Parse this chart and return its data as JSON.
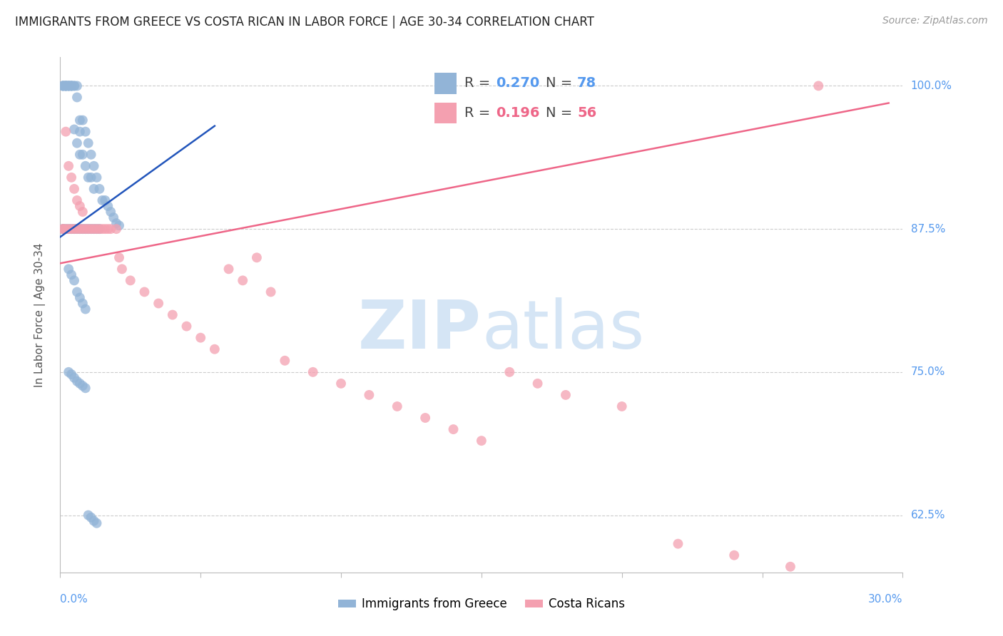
{
  "title": "IMMIGRANTS FROM GREECE VS COSTA RICAN IN LABOR FORCE | AGE 30-34 CORRELATION CHART",
  "source": "Source: ZipAtlas.com",
  "ylabel_label": "In Labor Force | Age 30-34",
  "legend_blue_r_val": "0.270",
  "legend_blue_n_val": "78",
  "legend_pink_r_val": "0.196",
  "legend_pink_n_val": "56",
  "blue_color": "#92B4D7",
  "pink_color": "#F4A0B0",
  "trend_blue_color": "#2255BB",
  "trend_pink_color": "#EE6688",
  "axis_label_color": "#5599EE",
  "watermark_color": "#D5E5F5",
  "background_color": "#FFFFFF",
  "xlim": [
    0.0,
    0.3
  ],
  "ylim": [
    0.575,
    1.025
  ],
  "yticks": [
    0.625,
    0.75,
    0.875,
    1.0
  ],
  "ytick_labels": [
    "62.5%",
    "75.0%",
    "87.5%",
    "100.0%"
  ],
  "blue_trend": [
    0.0,
    0.055,
    0.868,
    0.965
  ],
  "pink_trend": [
    0.0,
    0.295,
    0.845,
    0.985
  ],
  "blue_x": [
    0.001,
    0.001,
    0.001,
    0.001,
    0.002,
    0.002,
    0.002,
    0.002,
    0.002,
    0.003,
    0.003,
    0.003,
    0.003,
    0.004,
    0.004,
    0.004,
    0.004,
    0.005,
    0.005,
    0.005,
    0.006,
    0.006,
    0.006,
    0.007,
    0.007,
    0.007,
    0.008,
    0.008,
    0.009,
    0.009,
    0.01,
    0.01,
    0.011,
    0.011,
    0.012,
    0.012,
    0.013,
    0.014,
    0.015,
    0.016,
    0.017,
    0.018,
    0.019,
    0.02,
    0.021,
    0.001,
    0.001,
    0.002,
    0.003,
    0.004,
    0.005,
    0.006,
    0.007,
    0.008,
    0.009,
    0.01,
    0.011,
    0.012,
    0.013,
    0.014,
    0.003,
    0.004,
    0.005,
    0.006,
    0.007,
    0.008,
    0.009,
    0.003,
    0.004,
    0.005,
    0.006,
    0.007,
    0.008,
    0.009,
    0.01,
    0.011,
    0.012,
    0.013
  ],
  "blue_y": [
    1.0,
    1.0,
    1.0,
    1.0,
    1.0,
    1.0,
    1.0,
    1.0,
    1.0,
    1.0,
    1.0,
    1.0,
    1.0,
    1.0,
    1.0,
    1.0,
    1.0,
    1.0,
    1.0,
    0.962,
    1.0,
    0.99,
    0.95,
    0.97,
    0.96,
    0.94,
    0.97,
    0.94,
    0.96,
    0.93,
    0.95,
    0.92,
    0.94,
    0.92,
    0.93,
    0.91,
    0.92,
    0.91,
    0.9,
    0.9,
    0.895,
    0.89,
    0.885,
    0.88,
    0.878,
    0.875,
    0.875,
    0.875,
    0.875,
    0.875,
    0.875,
    0.875,
    0.875,
    0.875,
    0.875,
    0.875,
    0.875,
    0.875,
    0.875,
    0.875,
    0.84,
    0.835,
    0.83,
    0.82,
    0.815,
    0.81,
    0.805,
    0.75,
    0.748,
    0.745,
    0.742,
    0.74,
    0.738,
    0.736,
    0.625,
    0.623,
    0.62,
    0.618
  ],
  "pink_x": [
    0.001,
    0.001,
    0.002,
    0.002,
    0.003,
    0.003,
    0.004,
    0.004,
    0.005,
    0.005,
    0.006,
    0.006,
    0.007,
    0.007,
    0.008,
    0.008,
    0.009,
    0.01,
    0.011,
    0.012,
    0.013,
    0.014,
    0.015,
    0.016,
    0.017,
    0.018,
    0.02,
    0.021,
    0.022,
    0.025,
    0.03,
    0.035,
    0.04,
    0.045,
    0.05,
    0.055,
    0.06,
    0.065,
    0.07,
    0.075,
    0.08,
    0.09,
    0.1,
    0.11,
    0.12,
    0.13,
    0.14,
    0.15,
    0.16,
    0.17,
    0.18,
    0.2,
    0.22,
    0.24,
    0.26,
    0.27
  ],
  "pink_y": [
    0.875,
    0.875,
    0.875,
    0.96,
    0.875,
    0.93,
    0.875,
    0.92,
    0.875,
    0.91,
    0.875,
    0.9,
    0.875,
    0.895,
    0.875,
    0.89,
    0.875,
    0.875,
    0.875,
    0.875,
    0.875,
    0.875,
    0.875,
    0.875,
    0.875,
    0.875,
    0.875,
    0.85,
    0.84,
    0.83,
    0.82,
    0.81,
    0.8,
    0.79,
    0.78,
    0.77,
    0.84,
    0.83,
    0.85,
    0.82,
    0.76,
    0.75,
    0.74,
    0.73,
    0.72,
    0.71,
    0.7,
    0.69,
    0.75,
    0.74,
    0.73,
    0.72,
    0.6,
    0.59,
    0.58,
    1.0
  ]
}
